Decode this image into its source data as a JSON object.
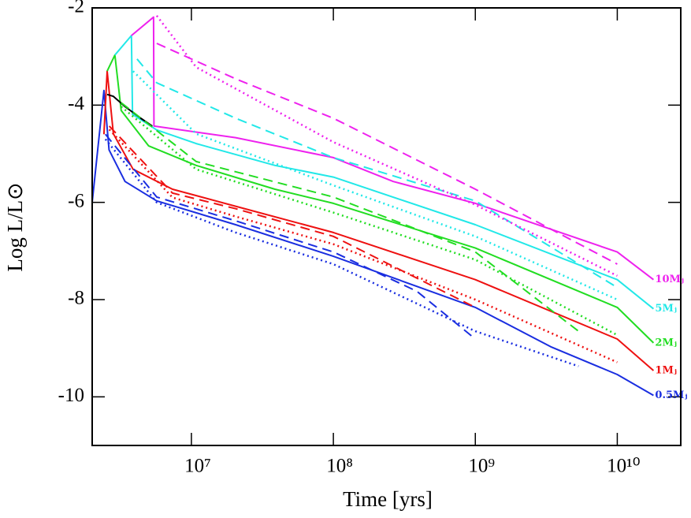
{
  "chart_data": {
    "type": "line",
    "x_label": "Time [yrs]",
    "y_label": "Log L/L⊙",
    "xscale": "log",
    "xlim": [
      2000000,
      28000000000
    ],
    "ylim": [
      -11,
      -2
    ],
    "xticks": [
      {
        "value": 10000000,
        "label": "10⁷"
      },
      {
        "value": 100000000,
        "label": "10⁸"
      },
      {
        "value": 1000000000,
        "label": "10⁹"
      },
      {
        "value": 10000000000,
        "label": "10¹⁰"
      }
    ],
    "yticks": [
      -2,
      -4,
      -6,
      -8,
      -10
    ],
    "series": [
      {
        "name": "0.5Mⱼ",
        "color": "#1a2ee0",
        "style": "solid",
        "x": [
          2000000,
          2420000,
          2630000,
          3410000,
          5700000,
          20500000,
          100000000,
          1000000000,
          3400000000,
          10000000000,
          18000000000
        ],
        "values": [
          -6,
          -3.7,
          -4.92,
          -5.57,
          -5.97,
          -6.46,
          -7.11,
          -8.16,
          -8.97,
          -9.54,
          -9.97
        ]
      },
      {
        "name": "1Mⱼ",
        "color": "#ee1111",
        "style": "solid",
        "x": [
          2420000,
          2550000,
          2820000,
          3880000,
          7360000,
          20500000,
          100000000,
          1000000000,
          10000000000,
          18000000000
        ],
        "values": [
          -4.6,
          -3.3,
          -4.59,
          -5.32,
          -5.73,
          -6.08,
          -6.62,
          -7.59,
          -8.81,
          -9.46
        ]
      },
      {
        "name": "2Mⱼ",
        "color": "#22dd22",
        "style": "solid",
        "x": [
          2550000,
          2890000,
          3200000,
          5000000,
          10800000,
          38800000,
          100000000,
          1000000000,
          10000000000,
          18000000000
        ],
        "values": [
          -3.3,
          -2.97,
          -4.11,
          -4.84,
          -5.24,
          -5.73,
          -6.02,
          -6.94,
          -8.16,
          -8.89
        ]
      },
      {
        "name": "5Mⱼ",
        "color": "#22e8e8",
        "style": "solid",
        "x": [
          2890000,
          3780000,
          3850000,
          5700000,
          10800000,
          38800000,
          100000000,
          1000000000,
          10000000000,
          18000000000
        ],
        "values": [
          -2.97,
          -2.57,
          -4.19,
          -4.51,
          -4.79,
          -5.24,
          -5.48,
          -6.46,
          -7.59,
          -8.19
        ]
      },
      {
        "name": "10Mⱼ",
        "color": "#ee22ee",
        "style": "solid",
        "x": [
          3780000,
          5410000,
          5450000,
          20500000,
          100000000,
          264000000,
          1000000000,
          10000000000,
          18000000000
        ],
        "values": [
          -2.57,
          -2.19,
          -4.43,
          -4.67,
          -5.08,
          -5.57,
          -6.02,
          -7.02,
          -7.59
        ]
      },
      {
        "color": "#000000",
        "style": "solid",
        "x": [
          2550000,
          2820000,
          3410000,
          4400000,
          5300000
        ],
        "values": [
          -3.78,
          -3.82,
          -4.03,
          -4.27,
          -4.43
        ]
      },
      {
        "color": "#1a2ee0",
        "style": "dashed",
        "x": [
          2480000,
          5700000,
          20500000,
          100000000,
          388000000,
          1000000000
        ],
        "values": [
          -4.6,
          -5.89,
          -6.38,
          -7.02,
          -7.83,
          -8.81
        ]
      },
      {
        "color": "#1a2ee0",
        "style": "dotted",
        "x": [
          2480000,
          5700000,
          20500000,
          100000000,
          1000000000,
          5340000000
        ],
        "values": [
          -4.7,
          -6.0,
          -6.62,
          -7.27,
          -8.65,
          -9.37
        ]
      },
      {
        "color": "#ee1111",
        "style": "dashed",
        "x": [
          2640000,
          7360000,
          20500000,
          100000000,
          1000000000
        ],
        "values": [
          -4.43,
          -5.81,
          -6.13,
          -6.7,
          -8.16
        ]
      },
      {
        "color": "#ee1111",
        "style": "dotted",
        "x": [
          2640000,
          7360000,
          20500000,
          100000000,
          1000000000,
          10000000000
        ],
        "values": [
          -4.5,
          -5.9,
          -6.29,
          -6.86,
          -8.0,
          -9.29
        ]
      },
      {
        "color": "#22dd22",
        "style": "dashed",
        "x": [
          3200000,
          10800000,
          100000000,
          1000000000,
          5340000000
        ],
        "values": [
          -3.95,
          -5.16,
          -5.89,
          -7.02,
          -8.65
        ]
      },
      {
        "color": "#22dd22",
        "style": "dotted",
        "x": [
          3200000,
          10800000,
          100000000,
          1000000000,
          10000000000
        ],
        "values": [
          -4.03,
          -5.32,
          -6.21,
          -7.18,
          -8.73
        ]
      },
      {
        "color": "#22e8e8",
        "style": "dashed",
        "x": [
          4140000,
          5700000,
          20500000,
          100000000,
          1000000000,
          10000000000
        ],
        "values": [
          -3.05,
          -3.54,
          -4.27,
          -5.08,
          -5.97,
          -7.75
        ]
      },
      {
        "color": "#22e8e8",
        "style": "dotted",
        "x": [
          3880000,
          10800000,
          100000000,
          1000000000,
          10000000000
        ],
        "values": [
          -3.3,
          -4.59,
          -5.65,
          -6.7,
          -8.0
        ]
      },
      {
        "color": "#ee22ee",
        "style": "dashed",
        "x": [
          5700000,
          20500000,
          100000000,
          1000000000,
          10000000000
        ],
        "values": [
          -2.73,
          -3.46,
          -4.27,
          -5.73,
          -7.27
        ]
      },
      {
        "color": "#ee22ee",
        "style": "dotted",
        "x": [
          5700000,
          10800000,
          100000000,
          1000000000,
          10000000000
        ],
        "values": [
          -2.16,
          -3.22,
          -4.76,
          -6.05,
          -7.51
        ]
      }
    ]
  }
}
